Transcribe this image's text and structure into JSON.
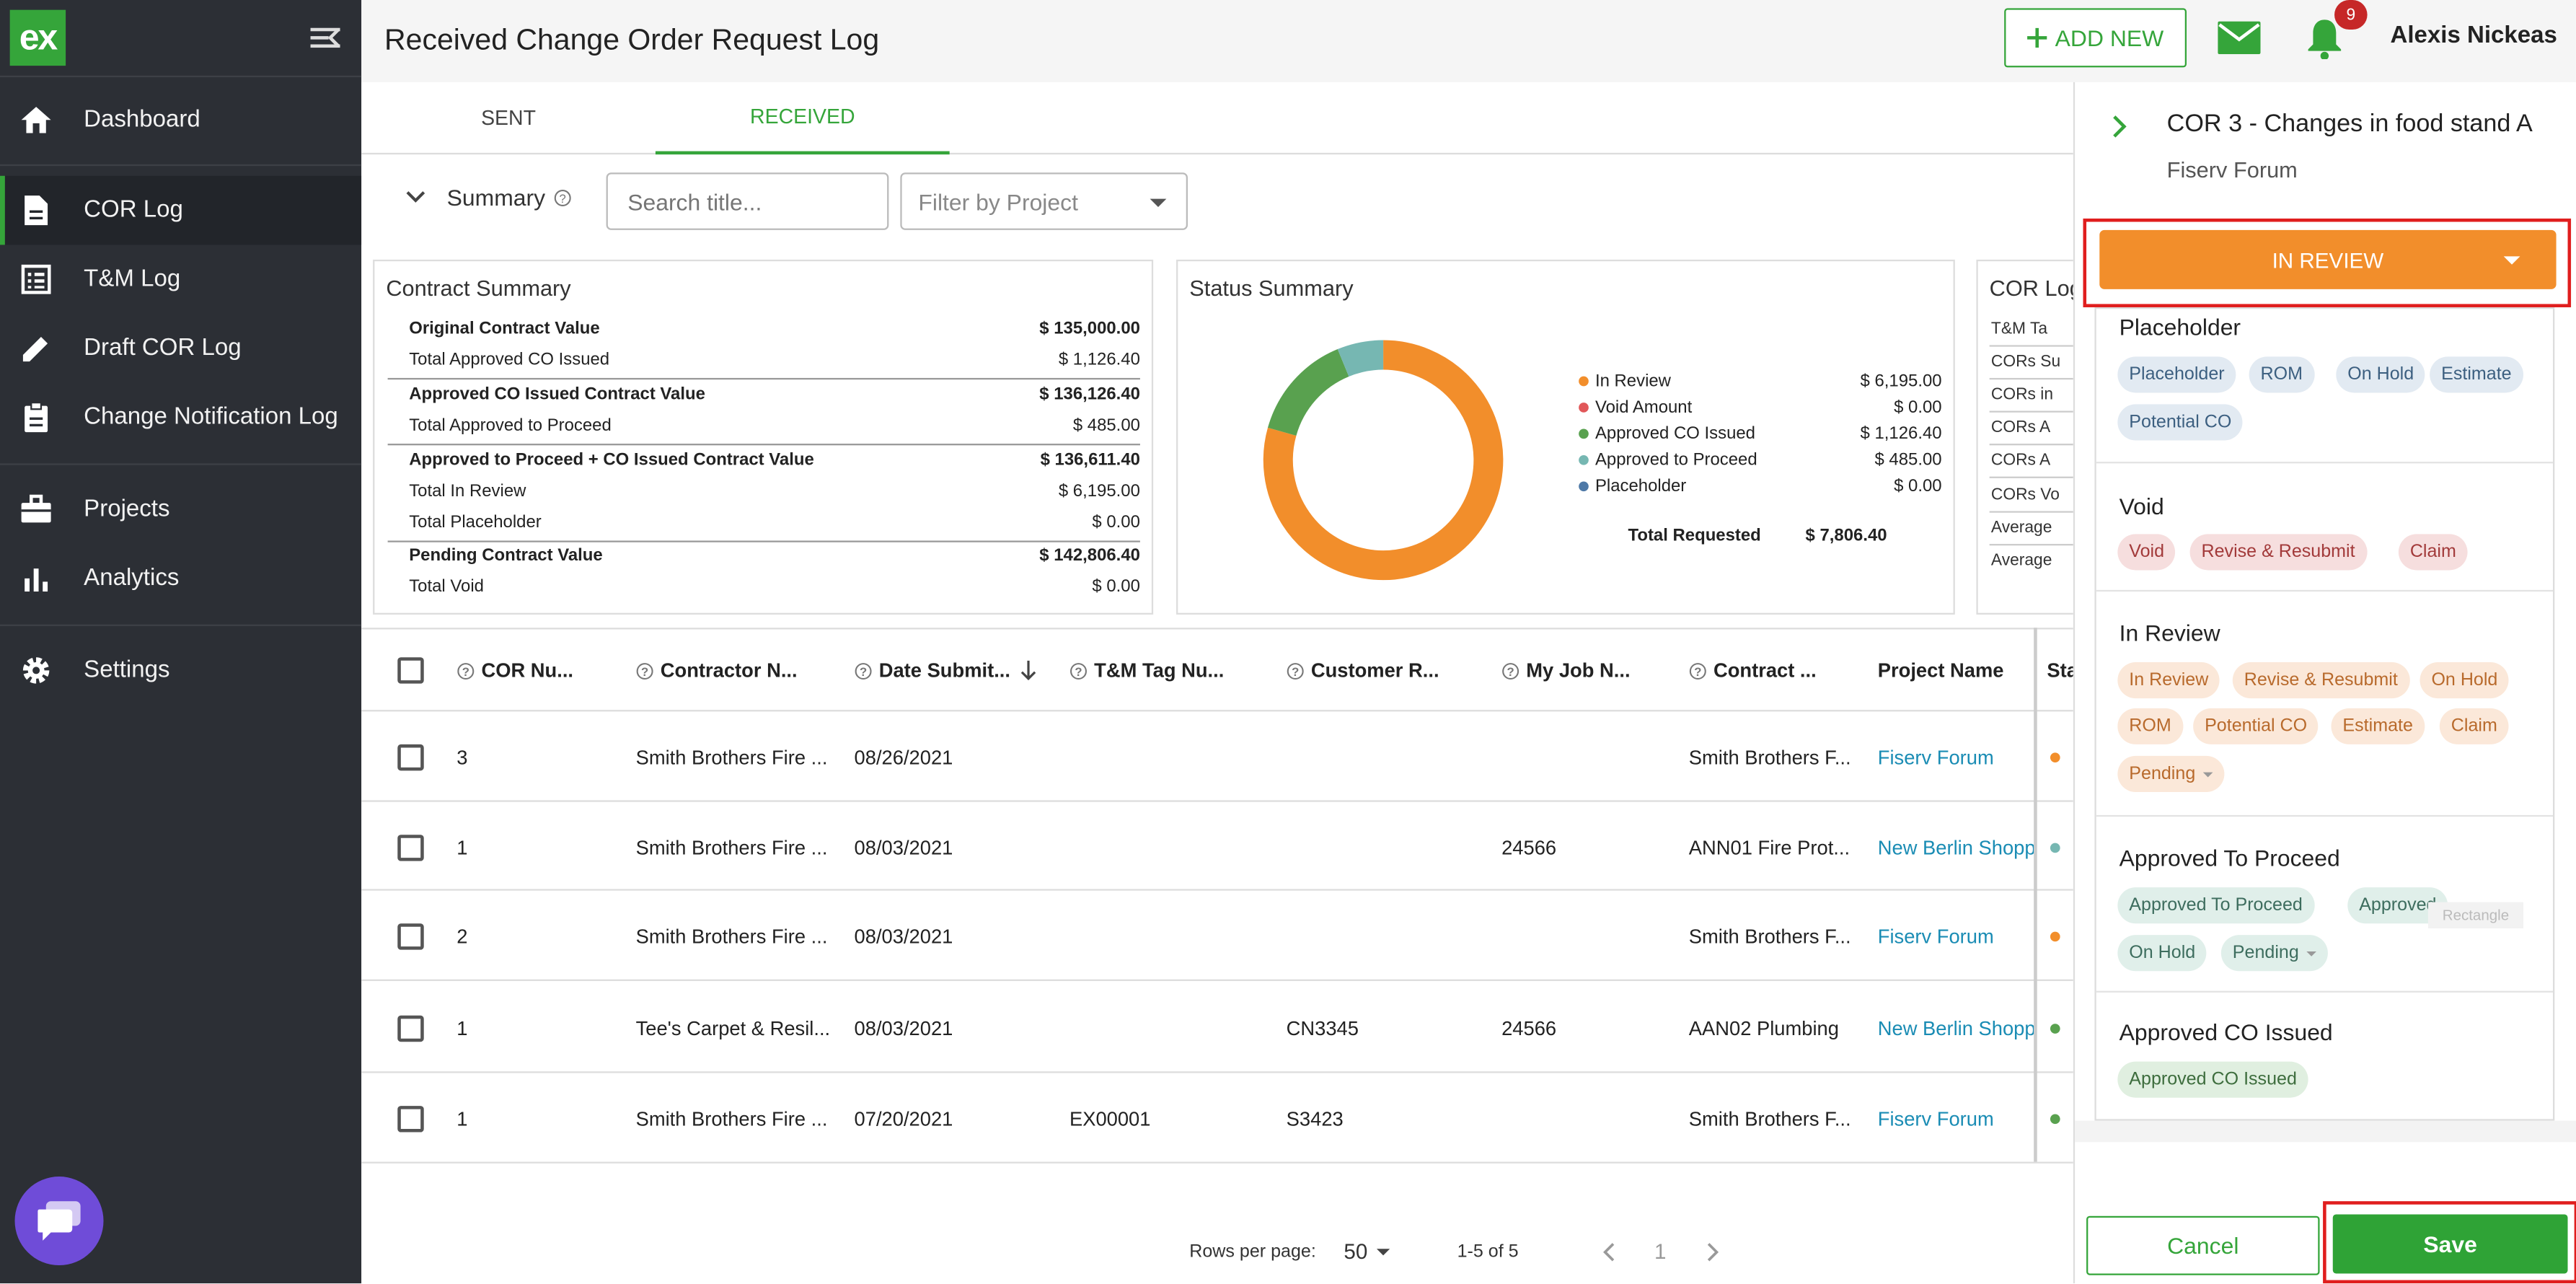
{
  "sidebar": {
    "logo": "ex",
    "items": [
      {
        "label": "Dashboard",
        "icon": "home-icon"
      },
      {
        "label": "COR Log",
        "icon": "document-icon"
      },
      {
        "label": "T&M Log",
        "icon": "list-icon"
      },
      {
        "label": "Draft COR Log",
        "icon": "pencil-icon"
      },
      {
        "label": "Change Notification Log",
        "icon": "clipboard-icon"
      },
      {
        "label": "Projects",
        "icon": "briefcase-icon"
      },
      {
        "label": "Analytics",
        "icon": "bar-chart-icon"
      },
      {
        "label": "Settings",
        "icon": "gear-icon"
      }
    ]
  },
  "header": {
    "title": "Received Change Order Request Log",
    "add_new": "ADD NEW",
    "notification_count": "9",
    "user_name": "Alexis Nickeas"
  },
  "tabs": [
    "SENT",
    "RECEIVED"
  ],
  "summary": {
    "label": "Summary",
    "search_placeholder": "Search title...",
    "project_filter_placeholder": "Filter by Project"
  },
  "contract_summary": {
    "title": "Contract Summary",
    "rows": [
      {
        "label": "Original Contract Value",
        "value": "$ 135,000.00",
        "bold": true
      },
      {
        "label": "Total Approved CO Issued",
        "value": "$ 1,126.40",
        "bold": false
      },
      {
        "label": "Approved CO Issued Contract Value",
        "value": "$ 136,126.40",
        "bold": true
      },
      {
        "label": "Total Approved to Proceed",
        "value": "$ 485.00",
        "bold": false
      },
      {
        "label": "Approved to Proceed + CO Issued Contract Value",
        "value": "$ 136,611.40",
        "bold": true
      },
      {
        "label": "Total In Review",
        "value": "$ 6,195.00",
        "bold": false
      },
      {
        "label": "Total Placeholder",
        "value": "$ 0.00",
        "bold": false
      },
      {
        "label": "Pending Contract Value",
        "value": "$ 142,806.40",
        "bold": true
      },
      {
        "label": "Total Void",
        "value": "$ 0.00",
        "bold": false
      }
    ]
  },
  "status_summary": {
    "title": "Status Summary",
    "legend": [
      {
        "label": "In Review",
        "value": "$ 6,195.00",
        "color": "#f28e2b",
        "amount": 6195.0
      },
      {
        "label": "Void Amount",
        "value": "$ 0.00",
        "color": "#e15759",
        "amount": 0
      },
      {
        "label": "Approved CO Issued",
        "value": "$ 1,126.40",
        "color": "#59a14f",
        "amount": 1126.4
      },
      {
        "label": "Approved to Proceed",
        "value": "$ 485.00",
        "color": "#76b7b2",
        "amount": 485.0
      },
      {
        "label": "Placeholder",
        "value": "$ 0.00",
        "color": "#4e79a7",
        "amount": 0
      }
    ],
    "total_label": "Total Requested",
    "total_value": "$ 7,806.40"
  },
  "chart_data": {
    "type": "pie",
    "categories": [
      "In Review",
      "Void Amount",
      "Approved CO Issued",
      "Approved to Proceed",
      "Placeholder"
    ],
    "values": [
      6195.0,
      0,
      1126.4,
      485.0,
      0
    ],
    "colors": [
      "#f28e2b",
      "#e15759",
      "#59a14f",
      "#76b7b2",
      "#4e79a7"
    ],
    "title": "Status Summary"
  },
  "cor_log_summary": {
    "title": "COR Log",
    "items": [
      "T&M Ta",
      "CORs Su",
      "CORs in",
      "CORs A",
      "CORs A",
      "CORs Vo",
      "Average",
      "Average"
    ]
  },
  "table": {
    "headers": [
      "COR Nu...",
      "Contractor N...",
      "Date Submit...",
      "T&M Tag Nu...",
      "Customer R...",
      "My Job N...",
      "Contract ...",
      "Project Name",
      "Sta"
    ],
    "rows": [
      {
        "cor": "3",
        "contractor": "Smith Brothers Fire ...",
        "date": "08/26/2021",
        "tag": "",
        "customer": "",
        "job": "",
        "contract": "Smith Brothers F...",
        "project": "Fiserv Forum",
        "status_color": "#f28e2b"
      },
      {
        "cor": "1",
        "contractor": "Smith Brothers Fire ...",
        "date": "08/03/2021",
        "tag": "",
        "customer": "",
        "job": "24566",
        "contract": "ANN01 Fire Prot...",
        "project": "New Berlin Shopp",
        "status_color": "#76b7b2"
      },
      {
        "cor": "2",
        "contractor": "Smith Brothers Fire ...",
        "date": "08/03/2021",
        "tag": "",
        "customer": "",
        "job": "",
        "contract": "Smith Brothers F...",
        "project": "Fiserv Forum",
        "status_color": "#f28e2b"
      },
      {
        "cor": "1",
        "contractor": "Tee's Carpet & Resil...",
        "date": "08/03/2021",
        "tag": "",
        "customer": "CN3345",
        "job": "24566",
        "contract": "AAN02 Plumbing",
        "project": "New Berlin Shopp",
        "status_color": "#59a14f"
      },
      {
        "cor": "1",
        "contractor": "Smith Brothers Fire ...",
        "date": "07/20/2021",
        "tag": "EX00001",
        "customer": "S3423",
        "job": "",
        "contract": "Smith Brothers F...",
        "project": "Fiserv Forum",
        "status_color": "#59a14f"
      }
    ]
  },
  "pagination": {
    "rows_label": "Rows per page:",
    "rows_value": "50",
    "range": "1-5 of 5",
    "page": "1"
  },
  "panel": {
    "title": "COR 3 - Changes in food stand A",
    "subtitle": "Fiserv Forum",
    "status": "IN REVIEW",
    "groups": [
      {
        "title": "Placeholder",
        "color": "blue",
        "chips": [
          "Placeholder",
          "ROM",
          "On Hold",
          "Estimate",
          "Potential CO"
        ]
      },
      {
        "title": "Void",
        "color": "red",
        "chips": [
          "Void",
          "Revise & Resubmit",
          "Claim"
        ]
      },
      {
        "title": "In Review",
        "color": "orange",
        "chips": [
          "In Review",
          "Revise & Resubmit",
          "On Hold",
          "ROM",
          "Potential CO",
          "Estimate",
          "Claim",
          "Pending"
        ]
      },
      {
        "title": "Approved To Proceed",
        "color": "teal",
        "chips": [
          "Approved To Proceed",
          "Approved",
          "On Hold",
          "Pending"
        ]
      },
      {
        "title": "Approved CO Issued",
        "color": "green",
        "chips": [
          "Approved CO Issued"
        ]
      }
    ],
    "rect_tag": "Rectangle",
    "cancel": "Cancel",
    "save": "Save"
  }
}
